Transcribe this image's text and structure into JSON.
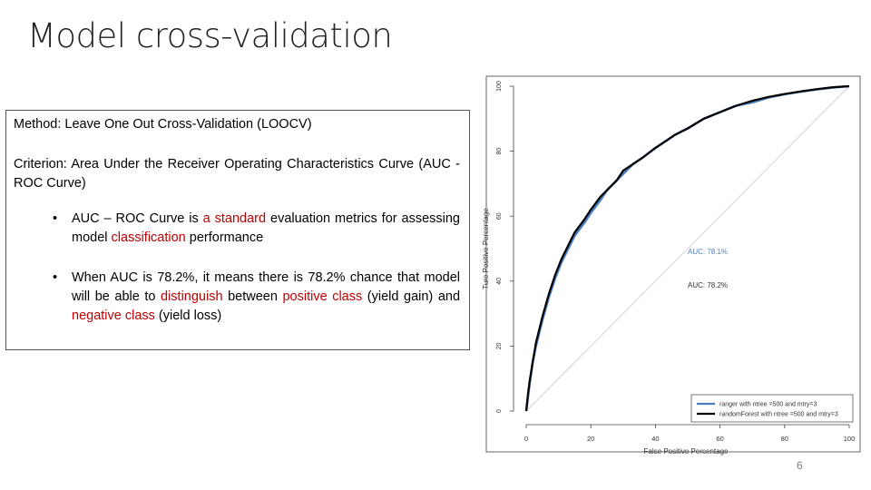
{
  "slide": {
    "title": "Model cross-validation",
    "page_number": "6"
  },
  "method_box": {
    "method": "Method: Leave One Out Cross-Validation (LOOCV)",
    "criterion": "Criterion: Area Under the Receiver Operating Characteristics Curve (AUC - ROC Curve)",
    "bullet1": {
      "t1": "AUC – ROC Curve is ",
      "h1": "a standard",
      "t2": " evaluation metrics for assessing model ",
      "h2": "classification",
      "t3": " performance"
    },
    "bullet2": {
      "t1": "When AUC is 78.2%, it means there is 78.2% chance that model will be able to ",
      "h1": "distinguish",
      "t2": " between ",
      "h2": "positive class",
      "t3": " (yield gain) and ",
      "h3": "negative class",
      "t4": " (yield loss)"
    },
    "highlight_color": "#c00000"
  },
  "chart_data": {
    "type": "line",
    "xlabel": "False Positive Percentage",
    "ylabel": "Ture Positive Percentage",
    "xlim": [
      0,
      100
    ],
    "ylim": [
      0,
      100
    ],
    "xticks": [
      "0",
      "20",
      "40",
      "60",
      "80",
      "100"
    ],
    "yticks": [
      "0",
      "20",
      "40",
      "60",
      "80",
      "100"
    ],
    "annotations": [
      "AUC: 78.1%",
      "AUC: 78.2%"
    ],
    "series": [
      {
        "name": "ranger with ntree =500 and mtry=3",
        "color": "#4a7fc0",
        "x": [
          0,
          0.5,
          1,
          2,
          3,
          5,
          7,
          9,
          11,
          13,
          15,
          18,
          20,
          23,
          25,
          28,
          30,
          33,
          36,
          40,
          43,
          46,
          50,
          55,
          60,
          65,
          70,
          75,
          80,
          85,
          90,
          95,
          100
        ],
        "y": [
          0,
          4,
          8,
          15,
          20,
          28,
          35,
          41,
          46,
          50,
          54,
          58,
          61,
          65,
          68,
          71,
          73,
          76,
          78,
          81,
          83,
          85,
          87,
          90,
          92,
          94,
          95,
          96.5,
          97.5,
          98.3,
          99,
          99.6,
          100
        ]
      },
      {
        "name": "randomForest with ntree =500 and mtry=3",
        "color": "#000000",
        "x": [
          0,
          0.5,
          1,
          2,
          3,
          5,
          7,
          9,
          11,
          13,
          15,
          18,
          20,
          23,
          25,
          28,
          30,
          33,
          36,
          40,
          43,
          46,
          50,
          55,
          60,
          65,
          70,
          75,
          80,
          85,
          90,
          95,
          100
        ],
        "y": [
          0,
          5,
          9,
          15,
          21,
          29,
          36,
          42,
          47,
          51,
          55,
          59,
          62,
          66,
          68,
          71,
          74,
          76,
          78,
          81,
          83,
          85,
          87,
          90,
          92,
          94,
          95.5,
          96.7,
          97.6,
          98.4,
          99.1,
          99.7,
          100
        ]
      }
    ],
    "reference_line": true,
    "legend": "bottom-right"
  }
}
